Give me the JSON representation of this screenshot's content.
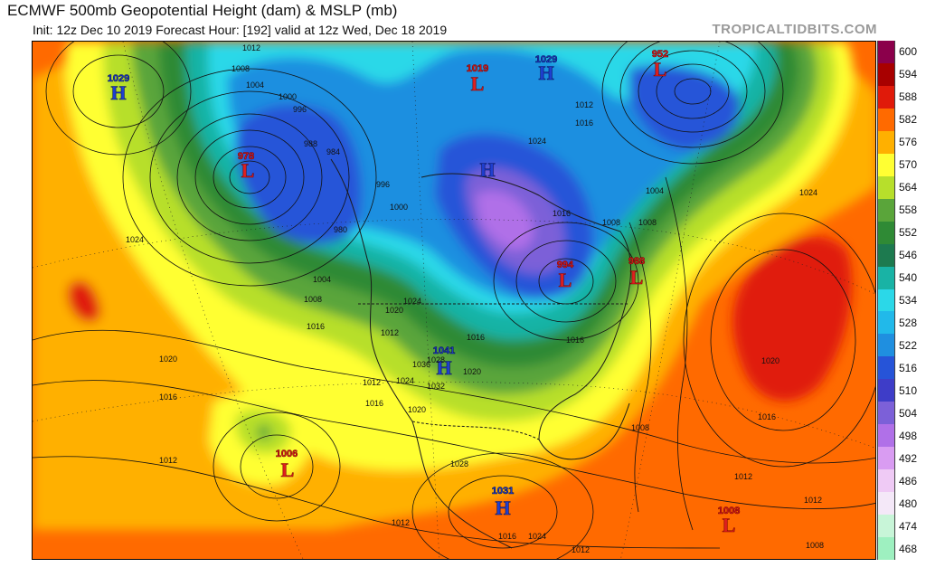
{
  "header": {
    "title": "ECMWF 500mb Geopotential Height (dam) & MSLP (mb)",
    "subtitle": "Init: 12z Dec 10 2019   Forecast Hour: [192]   valid at 12z Wed, Dec 18 2019",
    "brand": "TROPICALTIDBITS.COM"
  },
  "colorbar": {
    "labels": [
      "600",
      "594",
      "588",
      "582",
      "576",
      "570",
      "564",
      "558",
      "552",
      "546",
      "540",
      "534",
      "528",
      "522",
      "516",
      "510",
      "504",
      "498",
      "492",
      "486",
      "480",
      "474",
      "468"
    ],
    "colors": [
      "#8b004b",
      "#a80000",
      "#e01a0a",
      "#ff6a00",
      "#ffb000",
      "#ffff33",
      "#b7df2b",
      "#5aa53a",
      "#2f8a35",
      "#1d7a4f",
      "#19b3a5",
      "#2bd8e8",
      "#21b9ea",
      "#1f8fe0",
      "#2654d8",
      "#3e3dc8",
      "#7c60d8",
      "#b070e8",
      "#d99cf2",
      "#efcaf5",
      "#f4e8f8",
      "#c8f5d8",
      "#9ef0c0"
    ]
  },
  "systems": [
    {
      "type": "H",
      "value": "1029"
    },
    {
      "type": "L",
      "value": "978"
    },
    {
      "type": "L",
      "value": "1019"
    },
    {
      "type": "H",
      "value": "1029"
    },
    {
      "type": "L",
      "value": "952"
    },
    {
      "type": "H",
      "value": ""
    },
    {
      "type": "L",
      "value": "994"
    },
    {
      "type": "L",
      "value": "988"
    },
    {
      "type": "H",
      "value": "1041"
    },
    {
      "type": "L",
      "value": "1006"
    },
    {
      "type": "H",
      "value": "1031"
    },
    {
      "type": "L",
      "value": "1008"
    }
  ],
  "isobar_labels": [
    "1012",
    "1008",
    "1004",
    "1000",
    "996",
    "988",
    "984",
    "980",
    "1024",
    "1020",
    "1016",
    "1012",
    "1008",
    "1004",
    "1000",
    "996",
    "1024",
    "1016",
    "1016",
    "1012",
    "1004",
    "1008",
    "1008",
    "1016",
    "1024",
    "1020",
    "1016",
    "1012",
    "1008",
    "1012",
    "1016",
    "1020",
    "1024",
    "1028",
    "1032",
    "1036",
    "1016",
    "1020",
    "1012",
    "1024",
    "1028",
    "1016",
    "1024",
    "1012",
    "1008",
    "1012",
    "1020",
    "1016",
    "1012"
  ]
}
